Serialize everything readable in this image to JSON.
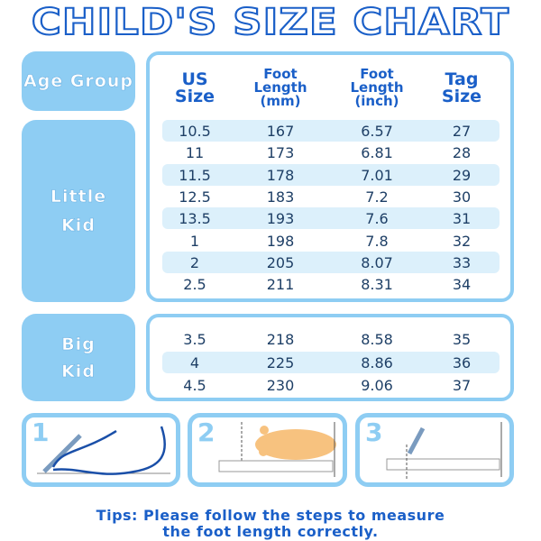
{
  "title": "CHILD'S SIZE CHART",
  "headers": {
    "age_group": "Age Group",
    "us_size": [
      "US",
      "Size"
    ],
    "foot_mm": [
      "Foot",
      "Length",
      "(mm)"
    ],
    "foot_inch": [
      "Foot",
      "Length",
      "(inch)"
    ],
    "tag_size": [
      "Tag",
      "Size"
    ]
  },
  "groups": [
    {
      "label": [
        "Little",
        "Kid"
      ],
      "rows": [
        [
          "10.5",
          "167",
          "6.57",
          "27"
        ],
        [
          "11",
          "173",
          "6.81",
          "28"
        ],
        [
          "11.5",
          "178",
          "7.01",
          "29"
        ],
        [
          "12.5",
          "183",
          "7.2",
          "30"
        ],
        [
          "13.5",
          "193",
          "7.6",
          "31"
        ],
        [
          "1",
          "198",
          "7.8",
          "32"
        ],
        [
          "2",
          "205",
          "8.07",
          "33"
        ],
        [
          "2.5",
          "211",
          "8.31",
          "34"
        ]
      ]
    },
    {
      "label": [
        "Big",
        "Kid"
      ],
      "rows": [
        [
          "3.5",
          "218",
          "8.58",
          "35"
        ],
        [
          "4",
          "225",
          "8.86",
          "36"
        ],
        [
          "4.5",
          "230",
          "9.06",
          "37"
        ]
      ]
    }
  ],
  "steps": [
    "1",
    "2",
    "3"
  ],
  "tips": [
    "Tips: Please follow the steps to measure",
    "the foot length correctly."
  ],
  "colors": {
    "accent": "#1a5fc8",
    "panel": "#8ecdf3",
    "stripe": "#dcf0fb",
    "foot": "#f7c27f"
  }
}
